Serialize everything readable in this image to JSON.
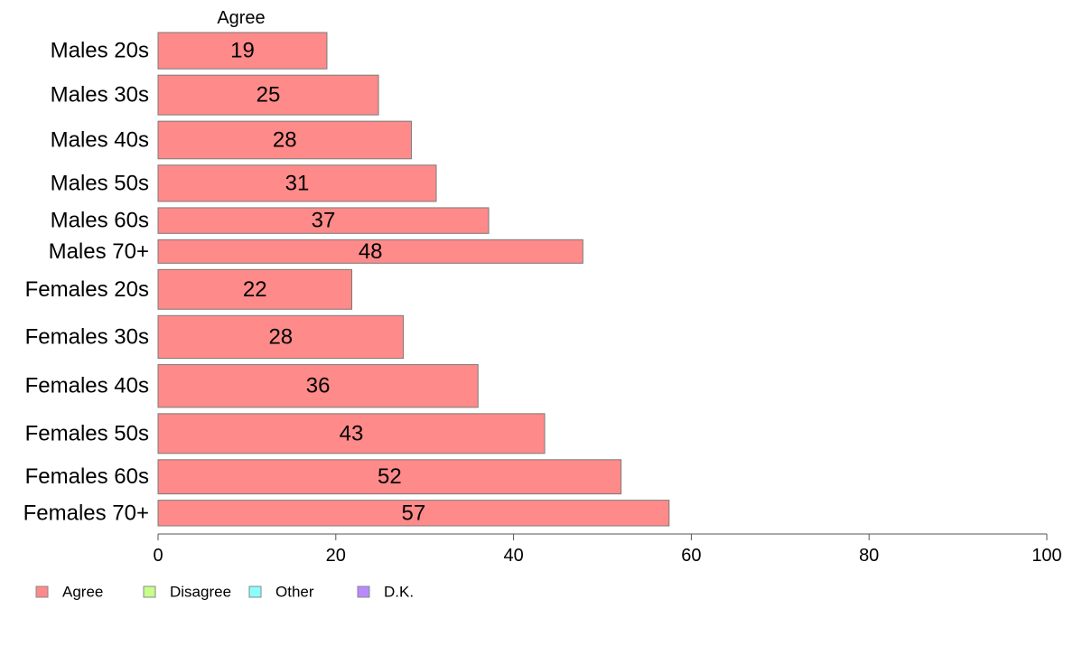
{
  "chart_data": {
    "type": "bar",
    "orientation": "horizontal",
    "stacked": true,
    "panel_title": "Agree",
    "categories": [
      "Males 20s",
      "Males 30s",
      "Males 40s",
      "Males 50s",
      "Males 60s",
      "Males 70+",
      "Females 20s",
      "Females 30s",
      "Females 40s",
      "Females 50s",
      "Females 60s",
      "Females 70+"
    ],
    "category_weights": [
      0.85,
      0.93,
      0.88,
      0.85,
      0.6,
      0.55,
      0.93,
      1.0,
      1.0,
      0.93,
      0.8,
      0.6
    ],
    "series": [
      {
        "name": "Agree",
        "color": "#ff8a8a",
        "values": [
          19,
          24.8,
          28.5,
          31.3,
          37.2,
          47.8,
          21.8,
          27.6,
          36,
          43.5,
          52.1,
          57.5
        ],
        "labels": [
          "19",
          "25",
          "28",
          "31",
          "37",
          "48",
          "22",
          "28",
          "36",
          "43",
          "52",
          "57"
        ]
      }
    ],
    "xlim": [
      0,
      100
    ],
    "xticks": [
      "0",
      "20",
      "40",
      "60",
      "80",
      "100"
    ],
    "grid": false,
    "legend": {
      "position": "bottom-left",
      "items": [
        {
          "label": "Agree",
          "color": "#ff8a8a"
        },
        {
          "label": "Disagree",
          "color": "#c6ff8a"
        },
        {
          "label": "Other",
          "color": "#8affff"
        },
        {
          "label": "D.K.",
          "color": "#b98aff"
        }
      ]
    }
  }
}
